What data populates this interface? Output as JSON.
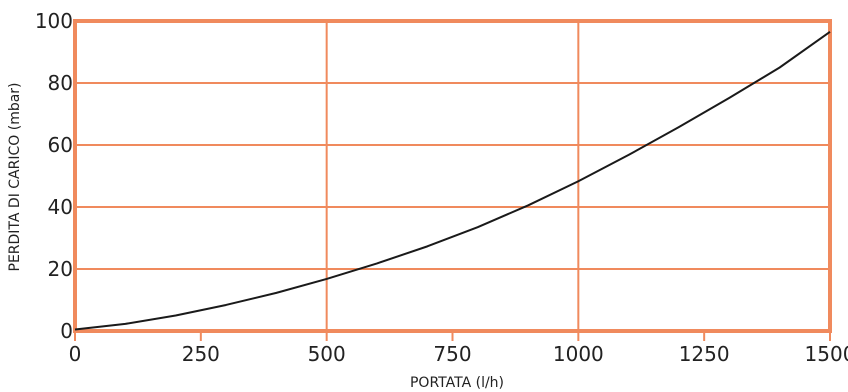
{
  "chart_data": {
    "type": "line",
    "title": "",
    "xlabel": "PORTATA (l/h)",
    "ylabel": "PERDITA DI CARICO (mbar)",
    "xlim": [
      0,
      1500
    ],
    "ylim": [
      0,
      100
    ],
    "x_ticks": [
      0,
      250,
      500,
      750,
      1000,
      1250,
      1500
    ],
    "y_ticks": [
      0,
      20,
      40,
      60,
      80,
      100
    ],
    "x_tick_labels": [
      "0",
      "250",
      "500",
      "750",
      "1000",
      "1250",
      "1500"
    ],
    "y_tick_labels": [
      "0",
      "20",
      "40",
      "60",
      "80",
      "100"
    ],
    "major_grid_x": [
      0,
      500,
      1000,
      1500
    ],
    "major_grid_y": [
      0,
      20,
      40,
      60,
      80,
      100
    ],
    "grid": true,
    "legend": "none",
    "grid_color": "#f08a5d",
    "line_color": "#1a1a1a",
    "series": [
      {
        "x": [
          0,
          100,
          200,
          300,
          400,
          500,
          600,
          700,
          800,
          900,
          1000,
          1100,
          1200,
          1300,
          1400,
          1500
        ],
        "y": [
          0.5,
          2.3,
          5.0,
          8.4,
          12.3,
          16.8,
          21.8,
          27.3,
          33.5,
          40.5,
          48.3,
          56.8,
          65.8,
          75.2,
          85.0,
          96.5
        ]
      }
    ]
  }
}
